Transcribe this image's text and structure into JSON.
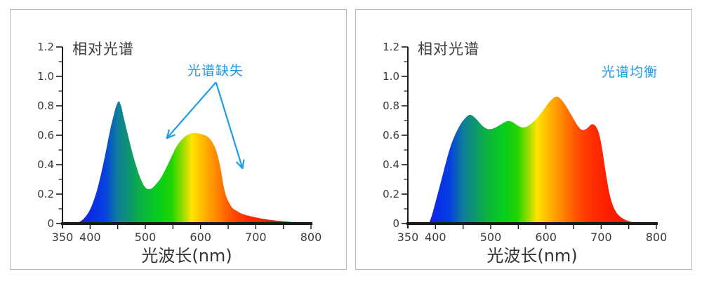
{
  "colors": {
    "annotation_blue": "#219CE8",
    "axis": "#1a1a1a",
    "tick_text": "#3b3b3b",
    "panel_border": "#b8b8b8"
  },
  "chart_data": [
    {
      "type": "area",
      "title": "相对光谱",
      "xlabel": "光波长(nm)",
      "annotation": {
        "text": "光谱缺失",
        "color": "#219CE8"
      },
      "annotation_arrows": [
        {
          "from": [
            628,
            0.96
          ],
          "to": [
            539,
            0.58
          ]
        },
        {
          "from": [
            628,
            0.96
          ],
          "to": [
            676,
            0.375
          ]
        }
      ],
      "xlim": [
        350,
        800
      ],
      "ylim": [
        0,
        1.2
      ],
      "x_tick_labels": [
        "350",
        "400",
        "500",
        "600",
        "700",
        "800"
      ],
      "x_labeled_ticks": [
        350,
        400,
        500,
        600,
        700,
        800
      ],
      "x_minor_tick_step": 50,
      "y_tick_labels": [
        "0",
        "0.2",
        "0.4",
        "0.6",
        "0.8",
        "1.0",
        "1.2"
      ],
      "y_labeled_ticks": [
        0,
        0.2,
        0.4,
        0.6,
        0.8,
        1.0,
        1.2
      ],
      "y_minor_tick_step": 0.1,
      "grid": false,
      "points": [
        [
          374,
          0
        ],
        [
          381,
          0.012
        ],
        [
          389,
          0.035
        ],
        [
          397,
          0.075
        ],
        [
          404,
          0.13
        ],
        [
          412,
          0.22
        ],
        [
          420,
          0.34
        ],
        [
          428,
          0.48
        ],
        [
          436,
          0.63
        ],
        [
          443,
          0.74
        ],
        [
          448,
          0.805
        ],
        [
          452,
          0.83
        ],
        [
          456,
          0.8
        ],
        [
          461,
          0.72
        ],
        [
          468,
          0.61
        ],
        [
          476,
          0.49
        ],
        [
          484,
          0.385
        ],
        [
          492,
          0.3
        ],
        [
          499,
          0.25
        ],
        [
          505,
          0.235
        ],
        [
          512,
          0.24
        ],
        [
          520,
          0.27
        ],
        [
          529,
          0.315
        ],
        [
          538,
          0.38
        ],
        [
          547,
          0.45
        ],
        [
          556,
          0.52
        ],
        [
          565,
          0.565
        ],
        [
          573,
          0.595
        ],
        [
          581,
          0.61
        ],
        [
          590,
          0.615
        ],
        [
          599,
          0.61
        ],
        [
          608,
          0.6
        ],
        [
          616,
          0.58
        ],
        [
          624,
          0.535
        ],
        [
          630,
          0.475
        ],
        [
          636,
          0.38
        ],
        [
          641,
          0.27
        ],
        [
          646,
          0.19
        ],
        [
          652,
          0.14
        ],
        [
          658,
          0.105
        ],
        [
          666,
          0.085
        ],
        [
          676,
          0.065
        ],
        [
          690,
          0.05
        ],
        [
          705,
          0.038
        ],
        [
          720,
          0.028
        ],
        [
          740,
          0.019
        ],
        [
          760,
          0.012
        ],
        [
          780,
          0.006
        ],
        [
          795,
          0.001
        ],
        [
          800,
          0
        ]
      ]
    },
    {
      "type": "area",
      "title": "相对光谱",
      "xlabel": "光波长(nm)",
      "annotation": {
        "text": "光谱均衡",
        "color": "#219CE8"
      },
      "annotation_arrows": [],
      "xlim": [
        350,
        800
      ],
      "ylim": [
        0,
        1.2
      ],
      "x_tick_labels": [
        "350",
        "400",
        "500",
        "600",
        "700",
        "800"
      ],
      "x_labeled_ticks": [
        350,
        400,
        500,
        600,
        700,
        800
      ],
      "x_minor_tick_step": 50,
      "y_tick_labels": [
        "0",
        "0.2",
        "0.4",
        "0.6",
        "0.8",
        "1.0",
        "1.2"
      ],
      "y_labeled_ticks": [
        0,
        0.2,
        0.4,
        0.6,
        0.8,
        1.0,
        1.2
      ],
      "y_minor_tick_step": 0.1,
      "grid": false,
      "points": [
        [
          388,
          0
        ],
        [
          393,
          0.05
        ],
        [
          399,
          0.13
        ],
        [
          406,
          0.23
        ],
        [
          413,
          0.33
        ],
        [
          420,
          0.43
        ],
        [
          427,
          0.52
        ],
        [
          434,
          0.59
        ],
        [
          441,
          0.645
        ],
        [
          448,
          0.69
        ],
        [
          455,
          0.72
        ],
        [
          461,
          0.738
        ],
        [
          467,
          0.733
        ],
        [
          474,
          0.71
        ],
        [
          481,
          0.68
        ],
        [
          488,
          0.655
        ],
        [
          495,
          0.642
        ],
        [
          502,
          0.643
        ],
        [
          509,
          0.653
        ],
        [
          517,
          0.67
        ],
        [
          525,
          0.688
        ],
        [
          532,
          0.697
        ],
        [
          539,
          0.69
        ],
        [
          546,
          0.673
        ],
        [
          553,
          0.658
        ],
        [
          559,
          0.653
        ],
        [
          566,
          0.66
        ],
        [
          573,
          0.678
        ],
        [
          581,
          0.705
        ],
        [
          589,
          0.74
        ],
        [
          597,
          0.78
        ],
        [
          605,
          0.82
        ],
        [
          612,
          0.848
        ],
        [
          618,
          0.862
        ],
        [
          624,
          0.856
        ],
        [
          630,
          0.833
        ],
        [
          637,
          0.795
        ],
        [
          644,
          0.75
        ],
        [
          651,
          0.705
        ],
        [
          657,
          0.668
        ],
        [
          663,
          0.642
        ],
        [
          669,
          0.636
        ],
        [
          675,
          0.648
        ],
        [
          681,
          0.67
        ],
        [
          685,
          0.674
        ],
        [
          690,
          0.662
        ],
        [
          695,
          0.625
        ],
        [
          699,
          0.565
        ],
        [
          703,
          0.48
        ],
        [
          707,
          0.38
        ],
        [
          711,
          0.285
        ],
        [
          715,
          0.205
        ],
        [
          720,
          0.135
        ],
        [
          726,
          0.085
        ],
        [
          733,
          0.052
        ],
        [
          741,
          0.03
        ],
        [
          750,
          0.016
        ],
        [
          760,
          0.007
        ],
        [
          772,
          0.002
        ],
        [
          780,
          0
        ]
      ]
    }
  ],
  "spectrum_gradient_stops": [
    {
      "nm": 350,
      "color": "#3430a8"
    },
    {
      "nm": 386,
      "color": "#2224cc"
    },
    {
      "nm": 404,
      "color": "#0a2ee8"
    },
    {
      "nm": 426,
      "color": "#0540e0"
    },
    {
      "nm": 451,
      "color": "#0f7f98"
    },
    {
      "nm": 471,
      "color": "#0d966e"
    },
    {
      "nm": 494,
      "color": "#0cb43e"
    },
    {
      "nm": 521,
      "color": "#05cc1e"
    },
    {
      "nm": 548,
      "color": "#22d400"
    },
    {
      "nm": 566,
      "color": "#8cdc00"
    },
    {
      "nm": 584,
      "color": "#ffe400"
    },
    {
      "nm": 606,
      "color": "#ffb400"
    },
    {
      "nm": 629,
      "color": "#ff8600"
    },
    {
      "nm": 656,
      "color": "#ff5000"
    },
    {
      "nm": 683,
      "color": "#ff2e00"
    },
    {
      "nm": 719,
      "color": "#fc1c00"
    },
    {
      "nm": 800,
      "color": "#f21600"
    }
  ]
}
